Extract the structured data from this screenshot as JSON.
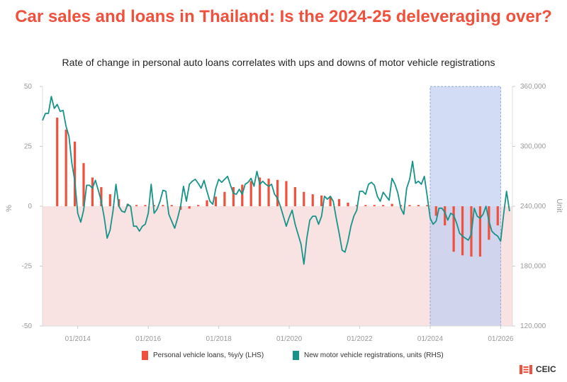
{
  "title": "Car sales and loans in Thailand: Is the 2024-25 deleveraging over?",
  "subtitle": "Rate of change in personal auto loans correlates with ups and downs of motor vehicle registrations",
  "brand": "CEIC",
  "colors": {
    "title": "#f0503c",
    "bar": "#f0503c",
    "line": "#17938a",
    "shade_negative": "#f8e3e2",
    "highlight": "#c0cff0",
    "highlight_border": "#8fa6da",
    "axis_text": "#999999"
  },
  "chart_data": {
    "type": "bar+line",
    "left_axis": {
      "label": "%",
      "ylim": [
        -50,
        50
      ],
      "ticks": [
        "50",
        "25",
        "0",
        "-25",
        "-50"
      ]
    },
    "right_axis": {
      "label": "Unit",
      "ylim": [
        120000,
        360000
      ],
      "ticks": [
        "360,000",
        "300,000",
        "240,000",
        "180,000",
        "120,000"
      ]
    },
    "x_ticks": [
      "01/2014",
      "01/2016",
      "01/2018",
      "01/2020",
      "01/2022",
      "01/2024",
      "01/2026"
    ],
    "x_range": [
      "2013-01",
      "2026-05"
    ],
    "negative_region_shaded": true,
    "highlight_period": [
      "2024-01",
      "2026-01"
    ],
    "legend": {
      "position": "bottom"
    },
    "series": [
      {
        "name": "Personal vehicle loans, %y/y (LHS)",
        "kind": "bar",
        "axis": "left",
        "points": [
          [
            "2013-06",
            37
          ],
          [
            "2013-09",
            32
          ],
          [
            "2013-12",
            27
          ],
          [
            "2014-03",
            18
          ],
          [
            "2014-06",
            12
          ],
          [
            "2014-09",
            8
          ],
          [
            "2014-12",
            5
          ],
          [
            "2015-03",
            3
          ],
          [
            "2015-06",
            1
          ],
          [
            "2015-09",
            0.5
          ],
          [
            "2015-12",
            0.5
          ],
          [
            "2016-03",
            0.5
          ],
          [
            "2016-06",
            0.5
          ],
          [
            "2016-09",
            0.5
          ],
          [
            "2016-12",
            -1.5
          ],
          [
            "2017-03",
            -1
          ],
          [
            "2017-06",
            0.5
          ],
          [
            "2017-09",
            2.5
          ],
          [
            "2017-12",
            4
          ],
          [
            "2018-03",
            6
          ],
          [
            "2018-06",
            8
          ],
          [
            "2018-09",
            9
          ],
          [
            "2018-12",
            10.5
          ],
          [
            "2019-03",
            12
          ],
          [
            "2019-06",
            11.5
          ],
          [
            "2019-09",
            11
          ],
          [
            "2019-12",
            10.5
          ],
          [
            "2020-03",
            8
          ],
          [
            "2020-06",
            6
          ],
          [
            "2020-09",
            5
          ],
          [
            "2020-12",
            4.5
          ],
          [
            "2021-03",
            4
          ],
          [
            "2021-06",
            3
          ],
          [
            "2021-09",
            1.5
          ],
          [
            "2021-12",
            0.5
          ],
          [
            "2022-03",
            0.5
          ],
          [
            "2022-06",
            0.5
          ],
          [
            "2022-09",
            0.5
          ],
          [
            "2022-12",
            1
          ],
          [
            "2023-03",
            0.5
          ],
          [
            "2023-06",
            0.5
          ],
          [
            "2023-09",
            0.5
          ],
          [
            "2023-12",
            0.5
          ],
          [
            "2024-03",
            -4
          ],
          [
            "2024-06",
            -8
          ],
          [
            "2024-09",
            -19
          ],
          [
            "2024-12",
            -20.5
          ],
          [
            "2025-03",
            -21
          ],
          [
            "2025-06",
            -21
          ],
          [
            "2025-09",
            -14
          ],
          [
            "2025-12",
            -8
          ]
        ]
      },
      {
        "name": "New motor vehicle registrations, units (RHS)",
        "kind": "line",
        "axis": "right",
        "points": [
          [
            "2013-01",
            326000
          ],
          [
            "2013-02",
            333000
          ],
          [
            "2013-03",
            333000
          ],
          [
            "2013-04",
            350000
          ],
          [
            "2013-05",
            338000
          ],
          [
            "2013-06",
            342000
          ],
          [
            "2013-07",
            335000
          ],
          [
            "2013-08",
            336000
          ],
          [
            "2013-09",
            320000
          ],
          [
            "2013-10",
            310000
          ],
          [
            "2013-11",
            283000
          ],
          [
            "2013-12",
            265000
          ],
          [
            "2014-01",
            233000
          ],
          [
            "2014-02",
            224000
          ],
          [
            "2014-03",
            236000
          ],
          [
            "2014-04",
            261000
          ],
          [
            "2014-05",
            261000
          ],
          [
            "2014-06",
            258000
          ],
          [
            "2014-07",
            266000
          ],
          [
            "2014-08",
            256000
          ],
          [
            "2014-09",
            245000
          ],
          [
            "2014-10",
            229000
          ],
          [
            "2014-11",
            208000
          ],
          [
            "2014-12",
            216000
          ],
          [
            "2015-01",
            235000
          ],
          [
            "2015-02",
            262000
          ],
          [
            "2015-03",
            240000
          ],
          [
            "2015-04",
            235000
          ],
          [
            "2015-05",
            234000
          ],
          [
            "2015-06",
            242000
          ],
          [
            "2015-07",
            240000
          ],
          [
            "2015-08",
            220000
          ],
          [
            "2015-09",
            220000
          ],
          [
            "2015-10",
            215000
          ],
          [
            "2015-11",
            220000
          ],
          [
            "2015-12",
            222000
          ],
          [
            "2016-01",
            233000
          ],
          [
            "2016-02",
            262000
          ],
          [
            "2016-03",
            233000
          ],
          [
            "2016-04",
            237000
          ],
          [
            "2016-05",
            245000
          ],
          [
            "2016-06",
            256000
          ],
          [
            "2016-07",
            255000
          ],
          [
            "2016-08",
            232000
          ],
          [
            "2016-09",
            225000
          ],
          [
            "2016-10",
            218000
          ],
          [
            "2016-11",
            228000
          ],
          [
            "2016-12",
            240000
          ],
          [
            "2017-01",
            260000
          ],
          [
            "2017-02",
            245000
          ],
          [
            "2017-03",
            262000
          ],
          [
            "2017-04",
            265000
          ],
          [
            "2017-05",
            267000
          ],
          [
            "2017-06",
            263000
          ],
          [
            "2017-07",
            258000
          ],
          [
            "2017-08",
            266000
          ],
          [
            "2017-09",
            255000
          ],
          [
            "2017-10",
            245000
          ],
          [
            "2017-11",
            242000
          ],
          [
            "2017-12",
            258000
          ],
          [
            "2018-01",
            267000
          ],
          [
            "2018-02",
            264000
          ],
          [
            "2018-03",
            267000
          ],
          [
            "2018-04",
            270000
          ],
          [
            "2018-05",
            261000
          ],
          [
            "2018-06",
            253000
          ],
          [
            "2018-07",
            252000
          ],
          [
            "2018-08",
            257000
          ],
          [
            "2018-09",
            252000
          ],
          [
            "2018-10",
            262000
          ],
          [
            "2018-11",
            264000
          ],
          [
            "2018-12",
            268000
          ],
          [
            "2019-01",
            260000
          ],
          [
            "2019-02",
            275000
          ],
          [
            "2019-03",
            262000
          ],
          [
            "2019-04",
            265000
          ],
          [
            "2019-05",
            262000
          ],
          [
            "2019-06",
            260000
          ],
          [
            "2019-07",
            262000
          ],
          [
            "2019-08",
            252000
          ],
          [
            "2019-09",
            248000
          ],
          [
            "2019-10",
            240000
          ],
          [
            "2019-11",
            230000
          ],
          [
            "2019-12",
            220000
          ],
          [
            "2020-01",
            229000
          ],
          [
            "2020-02",
            236000
          ],
          [
            "2020-03",
            222000
          ],
          [
            "2020-04",
            212000
          ],
          [
            "2020-05",
            202000
          ],
          [
            "2020-06",
            182000
          ],
          [
            "2020-07",
            208000
          ],
          [
            "2020-08",
            226000
          ],
          [
            "2020-09",
            230000
          ],
          [
            "2020-10",
            230000
          ],
          [
            "2020-11",
            222000
          ],
          [
            "2020-12",
            230000
          ],
          [
            "2021-01",
            250000
          ],
          [
            "2021-02",
            247000
          ],
          [
            "2021-03",
            250000
          ],
          [
            "2021-04",
            245000
          ],
          [
            "2021-05",
            228000
          ],
          [
            "2021-06",
            213000
          ],
          [
            "2021-07",
            196000
          ],
          [
            "2021-08",
            194000
          ],
          [
            "2021-09",
            205000
          ],
          [
            "2021-10",
            220000
          ],
          [
            "2021-11",
            230000
          ],
          [
            "2021-12",
            236000
          ],
          [
            "2022-01",
            255000
          ],
          [
            "2022-02",
            255000
          ],
          [
            "2022-03",
            252000
          ],
          [
            "2022-04",
            262000
          ],
          [
            "2022-05",
            264000
          ],
          [
            "2022-06",
            261000
          ],
          [
            "2022-07",
            250000
          ],
          [
            "2022-08",
            245000
          ],
          [
            "2022-09",
            254000
          ],
          [
            "2022-10",
            250000
          ],
          [
            "2022-11",
            246000
          ],
          [
            "2022-12",
            268000
          ],
          [
            "2023-01",
            262000
          ],
          [
            "2023-02",
            253000
          ],
          [
            "2023-03",
            238000
          ],
          [
            "2023-04",
            232000
          ],
          [
            "2023-05",
            258000
          ],
          [
            "2023-06",
            267000
          ],
          [
            "2023-07",
            285000
          ],
          [
            "2023-08",
            263000
          ],
          [
            "2023-09",
            265000
          ],
          [
            "2023-10",
            262000
          ],
          [
            "2023-11",
            270000
          ],
          [
            "2023-12",
            250000
          ],
          [
            "2024-01",
            228000
          ],
          [
            "2024-02",
            222000
          ],
          [
            "2024-03",
            225000
          ],
          [
            "2024-04",
            238000
          ],
          [
            "2024-05",
            238000
          ],
          [
            "2024-06",
            234000
          ],
          [
            "2024-07",
            226000
          ],
          [
            "2024-08",
            233000
          ],
          [
            "2024-09",
            231000
          ],
          [
            "2024-10",
            223000
          ],
          [
            "2024-11",
            213000
          ],
          [
            "2024-12",
            210000
          ],
          [
            "2025-01",
            208000
          ],
          [
            "2025-02",
            206000
          ],
          [
            "2025-03",
            212000
          ],
          [
            "2025-04",
            238000
          ],
          [
            "2025-05",
            230000
          ],
          [
            "2025-06",
            228000
          ],
          [
            "2025-07",
            232000
          ],
          [
            "2025-08",
            240000
          ],
          [
            "2025-09",
            225000
          ],
          [
            "2025-10",
            215000
          ],
          [
            "2025-11",
            212000
          ],
          [
            "2025-12",
            210000
          ],
          [
            "2026-01",
            205000
          ],
          [
            "2026-02",
            232000
          ],
          [
            "2026-03",
            255000
          ],
          [
            "2026-04",
            235000
          ]
        ]
      }
    ]
  }
}
